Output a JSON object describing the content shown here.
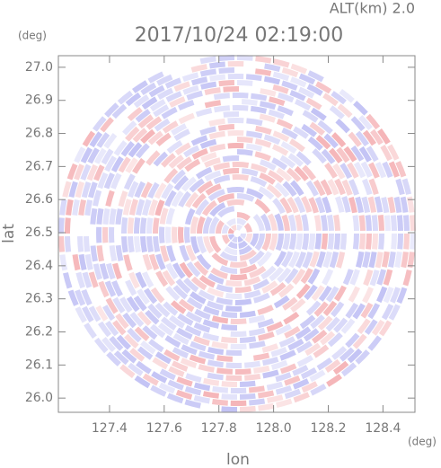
{
  "chart_data": {
    "type": "radar-ppi",
    "title": "2017/10/24 02:19:00",
    "subtitle": "ALT(km) 2.0",
    "x_label": "lon",
    "y_label": "lat",
    "x_unit": "(deg)",
    "y_unit": "(deg)",
    "xlim": [
      127.213,
      128.517
    ],
    "ylim": [
      25.957,
      27.035
    ],
    "xticks": [
      127.4,
      127.6,
      127.8,
      {
        "value": 128,
        "label": "128.0"
      },
      128.2,
      128.4
    ],
    "yticks": [
      {
        "value": 26,
        "label": "26.0"
      },
      26.1,
      26.2,
      26.3,
      26.4,
      26.5,
      26.6,
      26.7,
      26.8,
      26.9,
      {
        "value": 27,
        "label": "27.0"
      }
    ],
    "colors": [
      "#f5b5b8",
      "#c3c3f5"
    ]
  }
}
